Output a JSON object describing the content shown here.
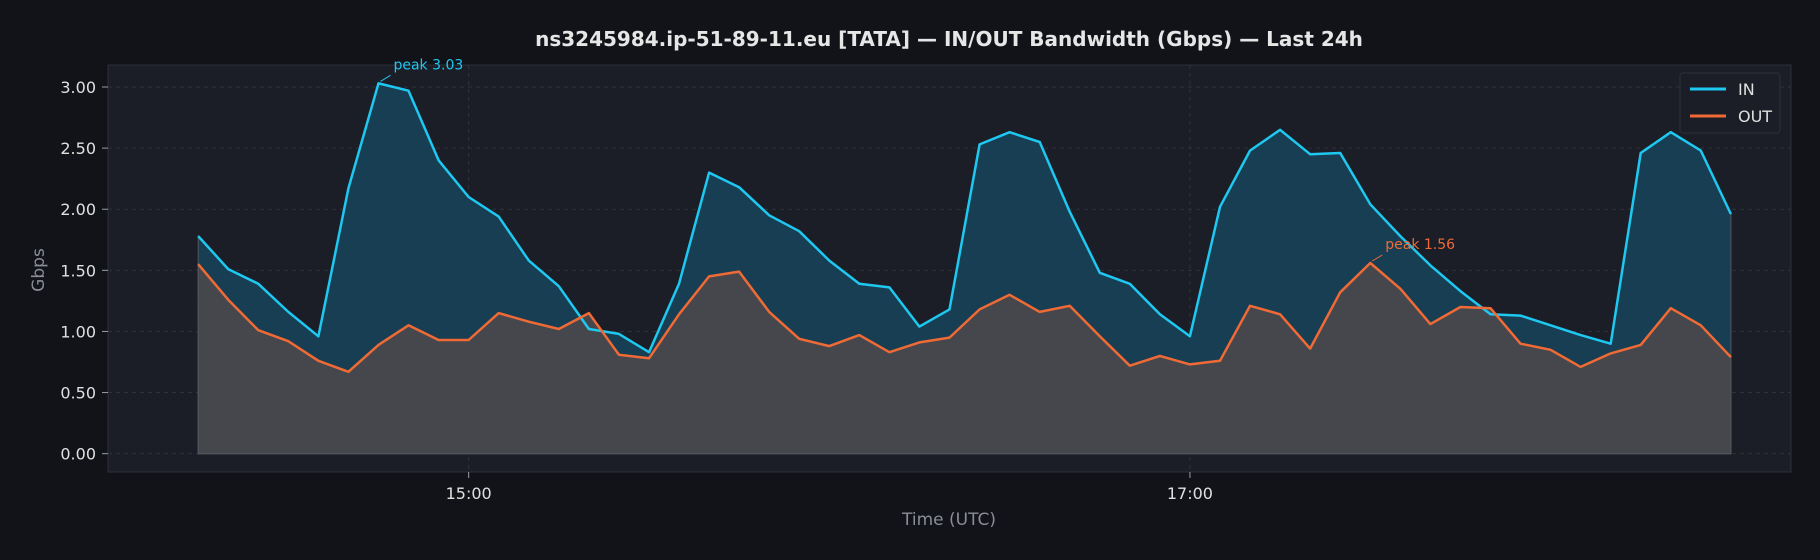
{
  "chart_data": {
    "type": "area",
    "title": "ns3245984.ip-51-89-11.eu [TATA] — IN/OUT Bandwidth (Gbps) — Last 24h",
    "xlabel": "Time (UTC)",
    "ylabel": "Gbps",
    "x_ticks": [
      {
        "label": "15:00",
        "time": "15:00"
      },
      {
        "label": "17:00",
        "time": "17:00"
      }
    ],
    "y_ticks": [
      "0.00",
      "0.50",
      "1.00",
      "1.50",
      "2.00",
      "2.50",
      "3.00"
    ],
    "ylim": [
      -0.15,
      3.18
    ],
    "xlim": [
      "14:00",
      "18:40"
    ],
    "grid": true,
    "legend_position": "top-right",
    "x": [
      "14:15",
      "14:20",
      "14:25",
      "14:30",
      "14:35",
      "14:40",
      "14:45",
      "14:50",
      "14:55",
      "15:00",
      "15:05",
      "15:10",
      "15:15",
      "15:20",
      "15:25",
      "15:30",
      "15:35",
      "15:40",
      "15:45",
      "15:50",
      "15:55",
      "16:00",
      "16:05",
      "16:10",
      "16:15",
      "16:20",
      "16:25",
      "16:30",
      "16:35",
      "16:40",
      "16:45",
      "16:50",
      "16:55",
      "17:00",
      "17:05",
      "17:10",
      "17:15",
      "17:20",
      "17:25",
      "17:30",
      "17:35",
      "17:40",
      "17:45",
      "17:50",
      "17:55",
      "18:00",
      "18:05",
      "18:10",
      "18:15",
      "18:20",
      "18:25",
      "18:30"
    ],
    "series": [
      {
        "name": "IN",
        "color": "#1ec8f0",
        "values": [
          1.78,
          1.51,
          1.39,
          1.16,
          0.96,
          2.17,
          3.03,
          2.97,
          2.4,
          2.1,
          1.94,
          1.58,
          1.37,
          1.02,
          0.98,
          0.83,
          1.39,
          2.3,
          2.18,
          1.95,
          1.82,
          1.58,
          1.39,
          1.36,
          1.04,
          1.18,
          2.53,
          2.63,
          2.55,
          1.98,
          1.48,
          1.39,
          1.14,
          0.96,
          2.02,
          2.48,
          2.65,
          2.45,
          2.46,
          2.04,
          1.78,
          1.54,
          1.33,
          1.14,
          1.13,
          1.05,
          0.97,
          0.9,
          2.46,
          2.63,
          2.48,
          1.96
        ]
      },
      {
        "name": "OUT",
        "color": "#f06a35",
        "values": [
          1.55,
          1.26,
          1.01,
          0.92,
          0.76,
          0.67,
          0.89,
          1.05,
          0.93,
          0.93,
          1.15,
          1.08,
          1.02,
          1.15,
          0.81,
          0.78,
          1.14,
          1.45,
          1.49,
          1.16,
          0.94,
          0.88,
          0.97,
          0.83,
          0.91,
          0.95,
          1.18,
          1.3,
          1.16,
          1.21,
          0.96,
          0.72,
          0.8,
          0.73,
          0.76,
          1.21,
          1.14,
          0.86,
          1.32,
          1.56,
          1.35,
          1.06,
          1.2,
          1.19,
          0.9,
          0.85,
          0.71,
          0.82,
          0.89,
          1.19,
          1.05,
          0.79
        ]
      }
    ],
    "annotations": [
      {
        "text": "peak 3.03",
        "series": "IN",
        "point_index": 6,
        "color": "#1ec8f0"
      },
      {
        "text": "peak 1.56",
        "series": "OUT",
        "point_index": 39,
        "color": "#f06a35"
      }
    ],
    "colors": {
      "page_bg": "#111318",
      "plot_bg": "#1b1d27",
      "in_fill": "#173e52",
      "out_fill": "#45474c",
      "grid": "#2f323b",
      "axis_text": "#e0e0e0",
      "label_text": "#8a8d96"
    }
  }
}
